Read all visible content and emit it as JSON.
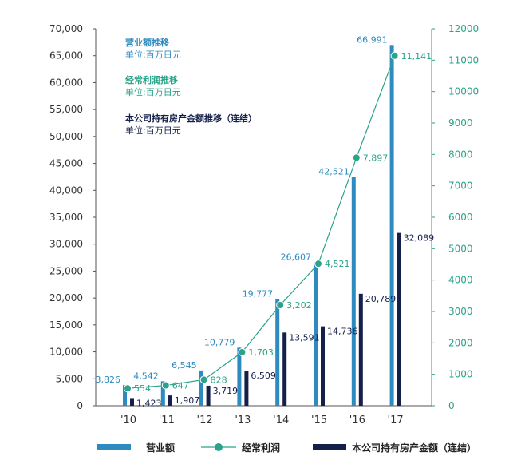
{
  "chart_data": {
    "type": "bar",
    "categories": [
      "'10",
      "'11",
      "'12",
      "'13",
      "'14",
      "'15",
      "'16",
      "'17"
    ],
    "series": [
      {
        "name": "营业额",
        "kind": "bar",
        "axis": "left",
        "color": "#2e8bc0",
        "values": [
          3826,
          4542,
          6545,
          10779,
          19777,
          26607,
          42521,
          66991
        ],
        "labels": [
          "3,826",
          "4,542",
          "6,545",
          "10,779",
          "19,777",
          "26,607",
          "42,521",
          "66,991"
        ]
      },
      {
        "name": "经常利润",
        "kind": "line",
        "axis": "right",
        "color": "#2aa38a",
        "values": [
          554,
          647,
          828,
          1703,
          3202,
          4521,
          7897,
          11141
        ],
        "labels": [
          "554",
          "647",
          "828",
          "1,703",
          "3,202",
          "4,521",
          "7,897",
          "11,141"
        ]
      },
      {
        "name": "本公司持有房产金额（连结）",
        "kind": "bar",
        "axis": "left",
        "color": "#15204a",
        "values": [
          1423,
          1907,
          3719,
          6509,
          13591,
          14736,
          20789,
          32089
        ],
        "labels": [
          "1,423",
          "1,907",
          "3,719",
          "6,509",
          "13,591",
          "14,736",
          "20,789",
          "32,089"
        ]
      }
    ],
    "y_left": {
      "lim": [
        0,
        70000
      ],
      "ticks": [
        "0",
        "5,000",
        "10,000",
        "15,000",
        "20,000",
        "25,000",
        "30,000",
        "35,000",
        "40,000",
        "45,000",
        "50,000",
        "55,000",
        "60,000",
        "65,000",
        "70,000"
      ]
    },
    "y_right": {
      "lim": [
        0,
        12000
      ],
      "ticks": [
        "0",
        "1000",
        "2000",
        "3000",
        "4000",
        "5000",
        "6000",
        "7000",
        "8000",
        "9000",
        "10000",
        "11000",
        "12000"
      ]
    },
    "grid": false,
    "legend_position": "bottom"
  },
  "annotations": [
    {
      "title": "营业额推移",
      "unit": "单位:百万日元",
      "color": "#2e8bc0"
    },
    {
      "title": "经常利润推移",
      "unit": "单位:百万日元",
      "color": "#2aa38a"
    },
    {
      "title": "本公司持有房产金额推移（连结）",
      "unit": "单位:百万日元",
      "color": "#15204a"
    }
  ],
  "legend": [
    {
      "label": "营业额",
      "icon": "bar-swatch-icon",
      "color": "#2e8bc0"
    },
    {
      "label": "经常利润",
      "icon": "line-marker-icon",
      "color": "#2aa38a"
    },
    {
      "label": "本公司持有房产金额（连结）",
      "icon": "bar-swatch-icon",
      "color": "#15204a"
    }
  ]
}
